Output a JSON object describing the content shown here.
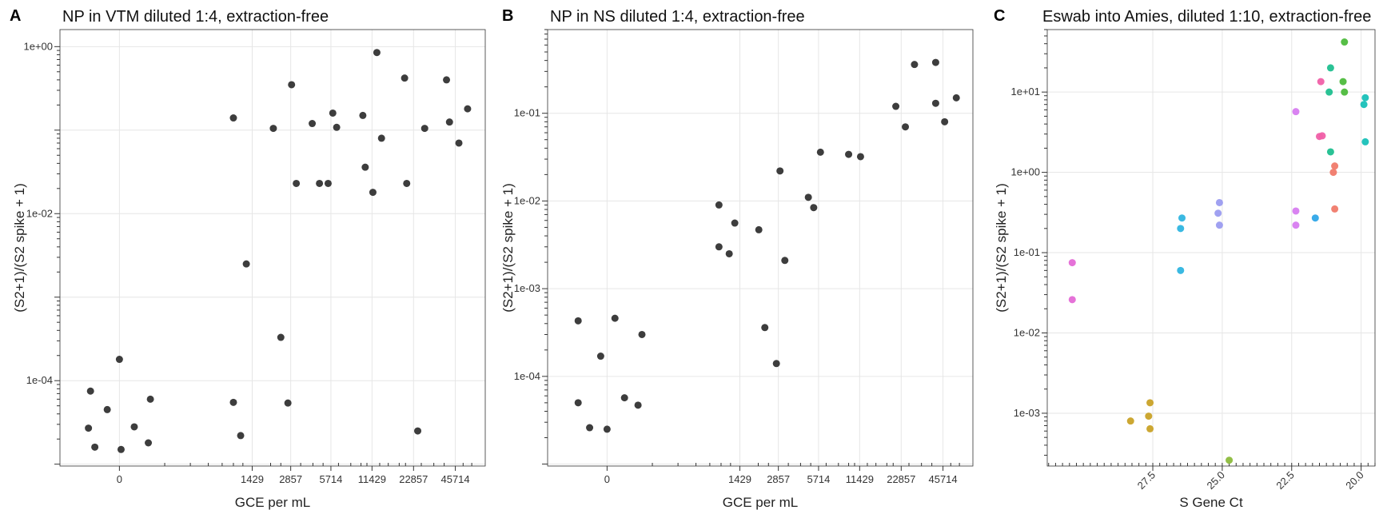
{
  "figure": {
    "panels": [
      {
        "letter": "A",
        "title": "NP in VTM diluted 1:4, extraction-free"
      },
      {
        "letter": "B",
        "title": "NP in NS diluted 1:4, extraction-free"
      },
      {
        "letter": "C",
        "title": "Eswab into Amies, diluted 1:10, extraction-free"
      }
    ]
  },
  "chart_data": [
    {
      "type": "scatter",
      "title": "NP in VTM diluted 1:4, extraction-free",
      "xlabel": "GCE per mL",
      "ylabel": "(S2+1)/(S2 spike + 1)",
      "x_scale": "pseudo-log",
      "y_scale": "log",
      "xlim": [
        -300,
        75000
      ],
      "ylim": [
        9.5e-06,
        1.6
      ],
      "x_ticks": [
        0,
        1429,
        2857,
        5714,
        11429,
        22857,
        45714
      ],
      "x_tick_labels": [
        "0",
        "1429",
        "2857",
        "5714",
        "11429",
        "22857",
        "45714"
      ],
      "y_ticks": [
        0.0001,
        0.01,
        1
      ],
      "y_tick_labels": [
        "1e-04",
        "1e-02",
        "1e+00"
      ],
      "marker_color": "#333333",
      "points": [
        {
          "x": -110,
          "y": 7.5e-05
        },
        {
          "x": -40,
          "y": 4.5e-05
        },
        {
          "x": 0,
          "y": 0.00018
        },
        {
          "x": 50,
          "y": 2.8e-05
        },
        {
          "x": 120,
          "y": 6e-05
        },
        {
          "x": -120,
          "y": 2.7e-05
        },
        {
          "x": -90,
          "y": 1.6e-05
        },
        {
          "x": 5,
          "y": 1.5e-05
        },
        {
          "x": 110,
          "y": 1.8e-05
        },
        {
          "x": 1000,
          "y": 5.5e-05
        },
        {
          "x": 1150,
          "y": 2.2e-05
        },
        {
          "x": 1000,
          "y": 0.14
        },
        {
          "x": 1280,
          "y": 0.0025
        },
        {
          "x": 2100,
          "y": 0.105
        },
        {
          "x": 2400,
          "y": 0.00033
        },
        {
          "x": 2720,
          "y": 5.4e-05
        },
        {
          "x": 2900,
          "y": 0.35
        },
        {
          "x": 3150,
          "y": 0.023
        },
        {
          "x": 4150,
          "y": 0.12
        },
        {
          "x": 4700,
          "y": 0.023
        },
        {
          "x": 5450,
          "y": 0.023
        },
        {
          "x": 5900,
          "y": 0.16
        },
        {
          "x": 6300,
          "y": 0.108
        },
        {
          "x": 9800,
          "y": 0.15
        },
        {
          "x": 10200,
          "y": 0.036
        },
        {
          "x": 11600,
          "y": 0.018
        },
        {
          "x": 12400,
          "y": 0.85
        },
        {
          "x": 13400,
          "y": 0.08
        },
        {
          "x": 19700,
          "y": 0.42
        },
        {
          "x": 20400,
          "y": 0.023
        },
        {
          "x": 24500,
          "y": 2.5e-05
        },
        {
          "x": 27500,
          "y": 0.105
        },
        {
          "x": 39500,
          "y": 0.4
        },
        {
          "x": 41500,
          "y": 0.125
        },
        {
          "x": 48500,
          "y": 0.07
        },
        {
          "x": 56000,
          "y": 0.18
        }
      ]
    },
    {
      "type": "scatter",
      "title": "NP in NS diluted 1:4, extraction-free",
      "xlabel": "GCE per mL",
      "ylabel": "(S2+1)/(S2 spike + 1)",
      "x_scale": "pseudo-log",
      "y_scale": "log",
      "xlim": [
        -300,
        75000
      ],
      "ylim": [
        9.5e-06,
        0.9
      ],
      "x_ticks": [
        0,
        1429,
        2857,
        5714,
        11429,
        22857,
        45714
      ],
      "x_tick_labels": [
        "0",
        "1429",
        "2857",
        "5714",
        "11429",
        "22857",
        "45714"
      ],
      "y_ticks": [
        0.0001,
        0.001,
        0.01,
        0.1
      ],
      "y_tick_labels": [
        "1e-04",
        "1e-03",
        "1e-02",
        "1e-01"
      ],
      "marker_color": "#333333",
      "points": [
        {
          "x": -110,
          "y": 0.00043
        },
        {
          "x": -110,
          "y": 5e-05
        },
        {
          "x": -60,
          "y": 2.6e-05
        },
        {
          "x": -20,
          "y": 0.00017
        },
        {
          "x": 0,
          "y": 2.5e-05
        },
        {
          "x": 25,
          "y": 0.00046
        },
        {
          "x": 60,
          "y": 5.7e-05
        },
        {
          "x": 120,
          "y": 4.7e-05
        },
        {
          "x": 140,
          "y": 0.0003
        },
        {
          "x": 960,
          "y": 0.009
        },
        {
          "x": 960,
          "y": 0.003
        },
        {
          "x": 1170,
          "y": 0.0025
        },
        {
          "x": 1300,
          "y": 0.0056
        },
        {
          "x": 2020,
          "y": 0.0047
        },
        {
          "x": 2250,
          "y": 0.00036
        },
        {
          "x": 2760,
          "y": 0.00014
        },
        {
          "x": 2940,
          "y": 0.022
        },
        {
          "x": 3200,
          "y": 0.0021
        },
        {
          "x": 4800,
          "y": 0.011
        },
        {
          "x": 5260,
          "y": 0.0084
        },
        {
          "x": 5900,
          "y": 0.036
        },
        {
          "x": 9500,
          "y": 0.034
        },
        {
          "x": 11600,
          "y": 0.032
        },
        {
          "x": 20900,
          "y": 0.12
        },
        {
          "x": 24500,
          "y": 0.07
        },
        {
          "x": 28500,
          "y": 0.36
        },
        {
          "x": 40500,
          "y": 0.38
        },
        {
          "x": 40500,
          "y": 0.13
        },
        {
          "x": 47000,
          "y": 0.08
        },
        {
          "x": 57000,
          "y": 0.15
        }
      ]
    },
    {
      "type": "scatter",
      "title": "Eswab into Amies, diluted 1:10, extraction-free",
      "xlabel": "S Gene Ct",
      "ylabel": "(S2+1)/(S2 spike + 1)",
      "x_scale": "linear-reversed",
      "y_scale": "log",
      "xlim": [
        31.3,
        19.5
      ],
      "ylim": [
        0.00022,
        60
      ],
      "x_ticks": [
        27.5,
        25.0,
        22.5,
        20.0
      ],
      "x_tick_labels": [
        "27.5",
        "25.0",
        "22.5",
        "20.0"
      ],
      "y_ticks": [
        0.001,
        0.01,
        0.1,
        1,
        10
      ],
      "y_tick_labels": [
        "1e-03",
        "1e-02",
        "1e-01",
        "1e+00",
        "1e+01"
      ],
      "points": [
        {
          "x": 30.4,
          "y": 0.075,
          "color": "#e46ad6"
        },
        {
          "x": 30.4,
          "y": 0.026,
          "color": "#e46ad6"
        },
        {
          "x": 28.3,
          "y": 0.0008,
          "color": "#c9a227"
        },
        {
          "x": 27.6,
          "y": 0.00135,
          "color": "#c9a227"
        },
        {
          "x": 27.65,
          "y": 0.00092,
          "color": "#c9a227"
        },
        {
          "x": 27.6,
          "y": 0.00064,
          "color": "#c9a227"
        },
        {
          "x": 26.5,
          "y": 0.2,
          "color": "#2fb5e0"
        },
        {
          "x": 26.45,
          "y": 0.27,
          "color": "#2fb5e0"
        },
        {
          "x": 26.5,
          "y": 0.06,
          "color": "#2fb5e0"
        },
        {
          "x": 25.1,
          "y": 0.42,
          "color": "#9b9cf0"
        },
        {
          "x": 25.15,
          "y": 0.31,
          "color": "#9b9cf0"
        },
        {
          "x": 25.1,
          "y": 0.22,
          "color": "#9b9cf0"
        },
        {
          "x": 24.75,
          "y": 0.00026,
          "color": "#8cba3c"
        },
        {
          "x": 22.35,
          "y": 5.7,
          "color": "#d77cf0"
        },
        {
          "x": 22.35,
          "y": 0.33,
          "color": "#d77cf0"
        },
        {
          "x": 22.35,
          "y": 0.22,
          "color": "#d77cf0"
        },
        {
          "x": 21.65,
          "y": 0.27,
          "color": "#2fa7e8"
        },
        {
          "x": 21.45,
          "y": 13.5,
          "color": "#f060a8"
        },
        {
          "x": 21.5,
          "y": 2.8,
          "color": "#f060a8"
        },
        {
          "x": 21.4,
          "y": 2.85,
          "color": "#f060a8"
        },
        {
          "x": 21.1,
          "y": 20.0,
          "color": "#1fbf8f"
        },
        {
          "x": 21.15,
          "y": 10.0,
          "color": "#1fbf8f"
        },
        {
          "x": 21.1,
          "y": 1.8,
          "color": "#1fbf8f"
        },
        {
          "x": 20.95,
          "y": 1.2,
          "color": "#f07a6a"
        },
        {
          "x": 21.0,
          "y": 1.0,
          "color": "#f07a6a"
        },
        {
          "x": 20.95,
          "y": 0.35,
          "color": "#f07a6a"
        },
        {
          "x": 20.6,
          "y": 42.0,
          "color": "#4dbb3c"
        },
        {
          "x": 20.65,
          "y": 13.5,
          "color": "#4dbb3c"
        },
        {
          "x": 20.6,
          "y": 10.0,
          "color": "#4dbb3c"
        },
        {
          "x": 19.85,
          "y": 8.5,
          "color": "#18c0b8"
        },
        {
          "x": 19.9,
          "y": 7.0,
          "color": "#18c0b8"
        },
        {
          "x": 19.85,
          "y": 2.4,
          "color": "#18c0b8"
        }
      ]
    }
  ]
}
